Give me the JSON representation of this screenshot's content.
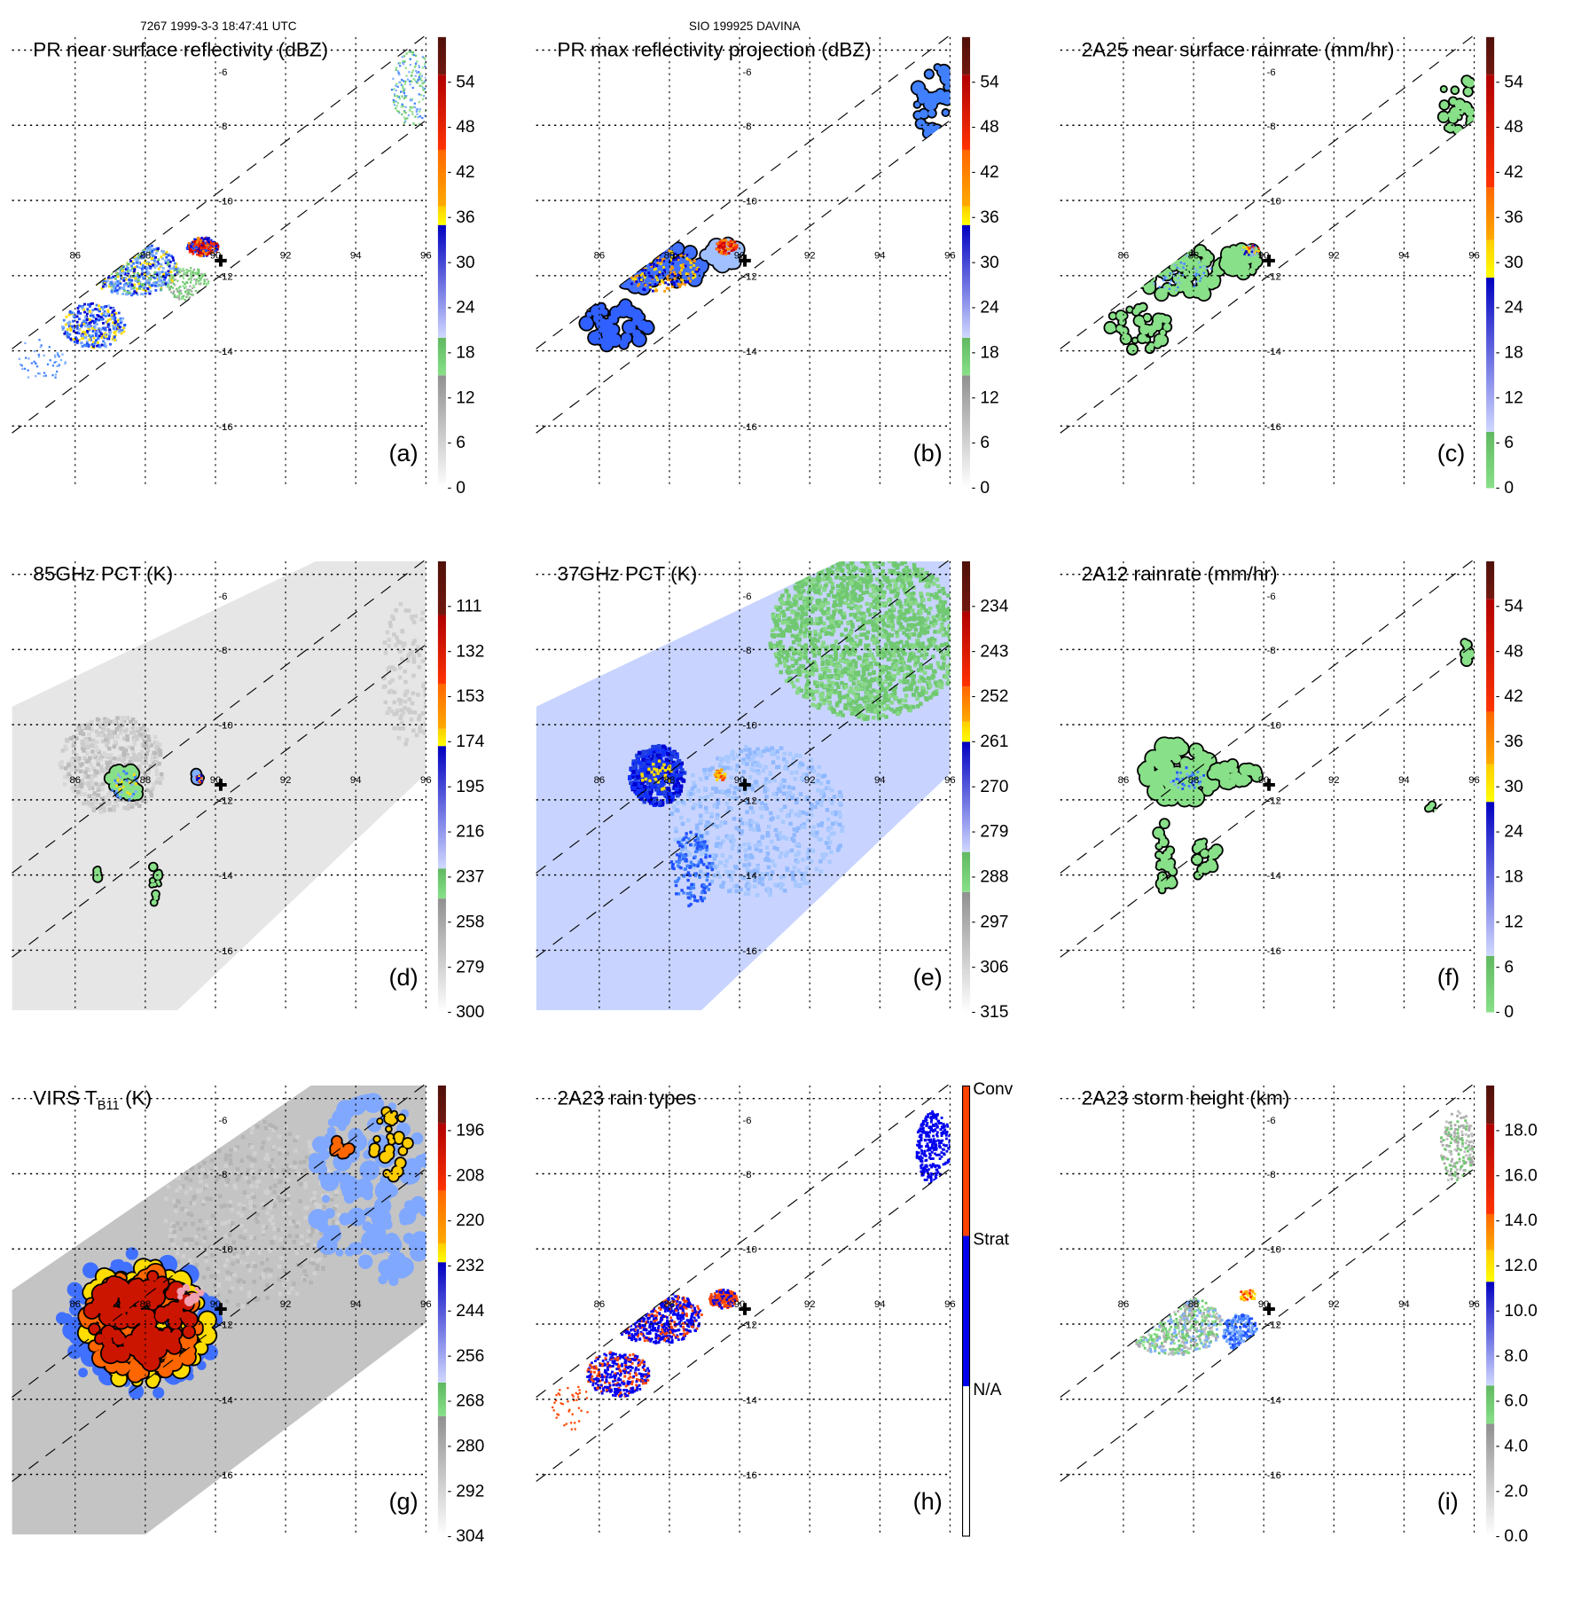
{
  "header": {
    "left": "7267 1999-3-3 18:47:41 UTC",
    "center": "SIO 199925 DAVINA"
  },
  "grid": {
    "lon_labels": [
      {
        "v": 86,
        "t": "86"
      },
      {
        "v": 88,
        "t": "88"
      },
      {
        "v": 90,
        "t": "90"
      },
      {
        "v": 92,
        "t": "92"
      },
      {
        "v": 94,
        "t": "94"
      },
      {
        "v": 96,
        "t": "96"
      }
    ],
    "lat_labels": [
      {
        "v": -6,
        "t": "-6"
      },
      {
        "v": -8,
        "t": "-8"
      },
      {
        "v": -10,
        "t": "-10"
      },
      {
        "v": -12,
        "t": "-12"
      },
      {
        "v": -14,
        "t": "-14"
      },
      {
        "v": -16,
        "t": "-16"
      }
    ],
    "marker": {
      "lon": 90.15,
      "lat": -11.6,
      "symbol": "+"
    }
  },
  "palette": {
    "gray": [
      "#ffffff",
      "#909090"
    ],
    "green": [
      "#88e088",
      "#60b860"
    ],
    "blue": [
      "#d0d8ff",
      "#0000c0"
    ],
    "yellow": [
      "#ffff00",
      "#ffcc00"
    ],
    "orange": [
      "#ffaa00",
      "#ff6600"
    ],
    "red": [
      "#ff3300",
      "#b00000"
    ],
    "brown": [
      "#701810",
      "#501008"
    ],
    "white": [
      "#ffffff",
      "#ffffff"
    ],
    "conv": [
      "#ff4400",
      "#ff4400"
    ],
    "strat": [
      "#0000ee",
      "#0000ee"
    ]
  },
  "panels": [
    {
      "id": "a",
      "label": "(a)",
      "title": "PR near surface reflectivity (dBZ)",
      "swath": "pr",
      "colorbar": {
        "range": [
          0,
          60
        ],
        "bands": [
          [
            0,
            15,
            "gray"
          ],
          [
            15,
            20,
            "green"
          ],
          [
            20,
            35,
            "blue"
          ],
          [
            35,
            37.5,
            "yellow"
          ],
          [
            37.5,
            45,
            "orange"
          ],
          [
            45,
            55,
            "red"
          ],
          [
            55,
            60,
            "brown"
          ]
        ],
        "ticks": [
          {
            "v": 54,
            "t": "54"
          },
          {
            "v": 48,
            "t": "48"
          },
          {
            "v": 42,
            "t": "42"
          },
          {
            "v": 36,
            "t": "36"
          },
          {
            "v": 30,
            "t": "30"
          },
          {
            "v": 24,
            "t": "24"
          },
          {
            "v": 18,
            "t": "18"
          },
          {
            "v": 12,
            "t": "12"
          },
          {
            "v": 6,
            "t": "6"
          },
          {
            "v": 0,
            "t": "0"
          }
        ]
      }
    },
    {
      "id": "b",
      "label": "(b)",
      "title": "PR max reflectivity projection (dBZ)",
      "swath": "pr",
      "colorbar": {
        "range": [
          0,
          60
        ],
        "bands": [
          [
            0,
            15,
            "gray"
          ],
          [
            15,
            20,
            "green"
          ],
          [
            20,
            35,
            "blue"
          ],
          [
            35,
            37.5,
            "yellow"
          ],
          [
            37.5,
            45,
            "orange"
          ],
          [
            45,
            55,
            "red"
          ],
          [
            55,
            60,
            "brown"
          ]
        ],
        "ticks": [
          {
            "v": 54,
            "t": "54"
          },
          {
            "v": 48,
            "t": "48"
          },
          {
            "v": 42,
            "t": "42"
          },
          {
            "v": 36,
            "t": "36"
          },
          {
            "v": 30,
            "t": "30"
          },
          {
            "v": 24,
            "t": "24"
          },
          {
            "v": 18,
            "t": "18"
          },
          {
            "v": 12,
            "t": "12"
          },
          {
            "v": 6,
            "t": "6"
          },
          {
            "v": 0,
            "t": "0"
          }
        ]
      }
    },
    {
      "id": "c",
      "label": "(c)",
      "title": "2A25 near surface rainrate (mm/hr)",
      "swath": "pr",
      "colorbar": {
        "range": [
          0,
          60
        ],
        "bands": [
          [
            0,
            7.5,
            "green"
          ],
          [
            7.5,
            28,
            "blue"
          ],
          [
            28,
            33,
            "yellow"
          ],
          [
            33,
            40,
            "orange"
          ],
          [
            40,
            55,
            "red"
          ],
          [
            55,
            60,
            "brown"
          ]
        ],
        "ticks": [
          {
            "v": 54,
            "t": "54"
          },
          {
            "v": 48,
            "t": "48"
          },
          {
            "v": 42,
            "t": "42"
          },
          {
            "v": 36,
            "t": "36"
          },
          {
            "v": 30,
            "t": "30"
          },
          {
            "v": 24,
            "t": "24"
          },
          {
            "v": 18,
            "t": "18"
          },
          {
            "v": 12,
            "t": "12"
          },
          {
            "v": 6,
            "t": "6"
          },
          {
            "v": 0,
            "t": "0"
          }
        ]
      }
    },
    {
      "id": "d",
      "label": "(d)",
      "title": "85GHz PCT (K)",
      "swath": "tmi",
      "colorbar": {
        "range": [
          300,
          90
        ],
        "bands": [
          [
            300,
            247,
            "gray"
          ],
          [
            247,
            233,
            "green"
          ],
          [
            233,
            176,
            "blue"
          ],
          [
            176,
            168,
            "yellow"
          ],
          [
            168,
            147,
            "orange"
          ],
          [
            147,
            115,
            "red"
          ],
          [
            115,
            90,
            "brown"
          ]
        ],
        "ticks": [
          {
            "v": 111,
            "t": "111"
          },
          {
            "v": 132,
            "t": "132"
          },
          {
            "v": 153,
            "t": "153"
          },
          {
            "v": 174,
            "t": "174"
          },
          {
            "v": 195,
            "t": "195"
          },
          {
            "v": 216,
            "t": "216"
          },
          {
            "v": 237,
            "t": "237"
          },
          {
            "v": 258,
            "t": "258"
          },
          {
            "v": 279,
            "t": "279"
          },
          {
            "v": 300,
            "t": "300"
          }
        ]
      }
    },
    {
      "id": "e",
      "label": "(e)",
      "title": "37GHz PCT (K)",
      "swath": "tmi",
      "colorbar": {
        "range": [
          315,
          225
        ],
        "bands": [
          [
            315,
            291,
            "gray"
          ],
          [
            291,
            283,
            "green"
          ],
          [
            283,
            261,
            "blue"
          ],
          [
            261,
            257,
            "yellow"
          ],
          [
            257,
            250,
            "orange"
          ],
          [
            250,
            235,
            "red"
          ],
          [
            235,
            225,
            "brown"
          ]
        ],
        "ticks": [
          {
            "v": 234,
            "t": "234"
          },
          {
            "v": 243,
            "t": "243"
          },
          {
            "v": 252,
            "t": "252"
          },
          {
            "v": 261,
            "t": "261"
          },
          {
            "v": 270,
            "t": "270"
          },
          {
            "v": 279,
            "t": "279"
          },
          {
            "v": 288,
            "t": "288"
          },
          {
            "v": 297,
            "t": "297"
          },
          {
            "v": 306,
            "t": "306"
          },
          {
            "v": 315,
            "t": "315"
          }
        ]
      }
    },
    {
      "id": "f",
      "label": "(f)",
      "title": "2A12 rainrate (mm/hr)",
      "swath": "tmi",
      "colorbar": {
        "range": [
          0,
          60
        ],
        "bands": [
          [
            0,
            7.5,
            "green"
          ],
          [
            7.5,
            28,
            "blue"
          ],
          [
            28,
            33,
            "yellow"
          ],
          [
            33,
            40,
            "orange"
          ],
          [
            40,
            55,
            "red"
          ],
          [
            55,
            60,
            "brown"
          ]
        ],
        "ticks": [
          {
            "v": 54,
            "t": "54"
          },
          {
            "v": 48,
            "t": "48"
          },
          {
            "v": 42,
            "t": "42"
          },
          {
            "v": 36,
            "t": "36"
          },
          {
            "v": 30,
            "t": "30"
          },
          {
            "v": 24,
            "t": "24"
          },
          {
            "v": 18,
            "t": "18"
          },
          {
            "v": 12,
            "t": "12"
          },
          {
            "v": 6,
            "t": "6"
          },
          {
            "v": 0,
            "t": "0"
          }
        ]
      }
    },
    {
      "id": "g",
      "label": "(g)",
      "title": "VIRS T",
      "title_sub": "B11",
      "title_suffix": " (K)",
      "swath": "virs",
      "colorbar": {
        "range": [
          304,
          184
        ],
        "bands": [
          [
            304,
            272,
            "gray"
          ],
          [
            272,
            263,
            "green"
          ],
          [
            263,
            231,
            "blue"
          ],
          [
            231,
            226,
            "yellow"
          ],
          [
            226,
            212,
            "orange"
          ],
          [
            212,
            194,
            "red"
          ],
          [
            194,
            184,
            "brown"
          ]
        ],
        "ticks": [
          {
            "v": 196,
            "t": "196"
          },
          {
            "v": 208,
            "t": "208"
          },
          {
            "v": 220,
            "t": "220"
          },
          {
            "v": 232,
            "t": "232"
          },
          {
            "v": 244,
            "t": "244"
          },
          {
            "v": 256,
            "t": "256"
          },
          {
            "v": 268,
            "t": "268"
          },
          {
            "v": 280,
            "t": "280"
          },
          {
            "v": 292,
            "t": "292"
          },
          {
            "v": 304,
            "t": "304"
          }
        ]
      }
    },
    {
      "id": "h",
      "label": "(h)",
      "title": "2A23 rain types",
      "swath": "pr",
      "colorbar": {
        "range": [
          0,
          3
        ],
        "categorical": true,
        "bands": [
          [
            0,
            1,
            "white"
          ],
          [
            1,
            2,
            "strat"
          ],
          [
            2,
            3,
            "conv"
          ]
        ],
        "ticks": [
          {
            "v": 3,
            "t": "Conv"
          },
          {
            "v": 2,
            "t": "Strat"
          },
          {
            "v": 1,
            "t": "N/A"
          }
        ]
      }
    },
    {
      "id": "i",
      "label": "(i)",
      "title": "2A23 storm height (km)",
      "swath": "pr",
      "colorbar": {
        "range": [
          0,
          20
        ],
        "bands": [
          [
            0,
            5,
            "gray"
          ],
          [
            5,
            6.7,
            "green"
          ],
          [
            6.7,
            11.3,
            "blue"
          ],
          [
            11.3,
            12.7,
            "yellow"
          ],
          [
            12.7,
            14.3,
            "orange"
          ],
          [
            14.3,
            18.3,
            "red"
          ],
          [
            18.3,
            20,
            "brown"
          ]
        ],
        "ticks": [
          {
            "v": 18,
            "t": "18.0"
          },
          {
            "v": 16,
            "t": "16.0"
          },
          {
            "v": 14,
            "t": "14.0"
          },
          {
            "v": 12,
            "t": "12.0"
          },
          {
            "v": 10,
            "t": "10.0"
          },
          {
            "v": 8,
            "t": "8.0"
          },
          {
            "v": 6,
            "t": "6.0"
          },
          {
            "v": 4,
            "t": "4.0"
          },
          {
            "v": 2,
            "t": "2.0"
          },
          {
            "v": 0,
            "t": "0.0"
          }
        ]
      }
    }
  ]
}
